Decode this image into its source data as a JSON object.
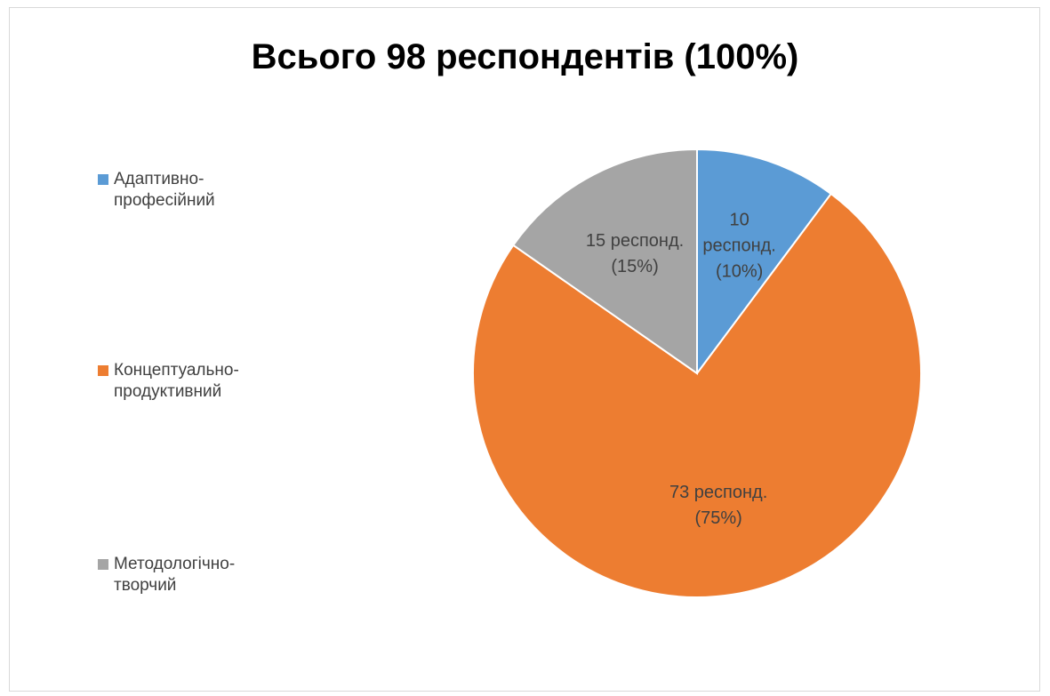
{
  "chart_data": {
    "type": "pie",
    "title": "Всього 98 респондентів (100%)",
    "categories": [
      "Адаптивно-професійний",
      "Концептуально-продуктивний",
      "Методологічно-творчий"
    ],
    "values": [
      10,
      73,
      15
    ],
    "value_labels": [
      "10 респонд. (10%)",
      "73 респонд. (75%)",
      "15 респонд. (15%)"
    ],
    "colors": [
      "#5b9bd5",
      "#ed7d31",
      "#a5a5a5"
    ],
    "legend": "left"
  }
}
